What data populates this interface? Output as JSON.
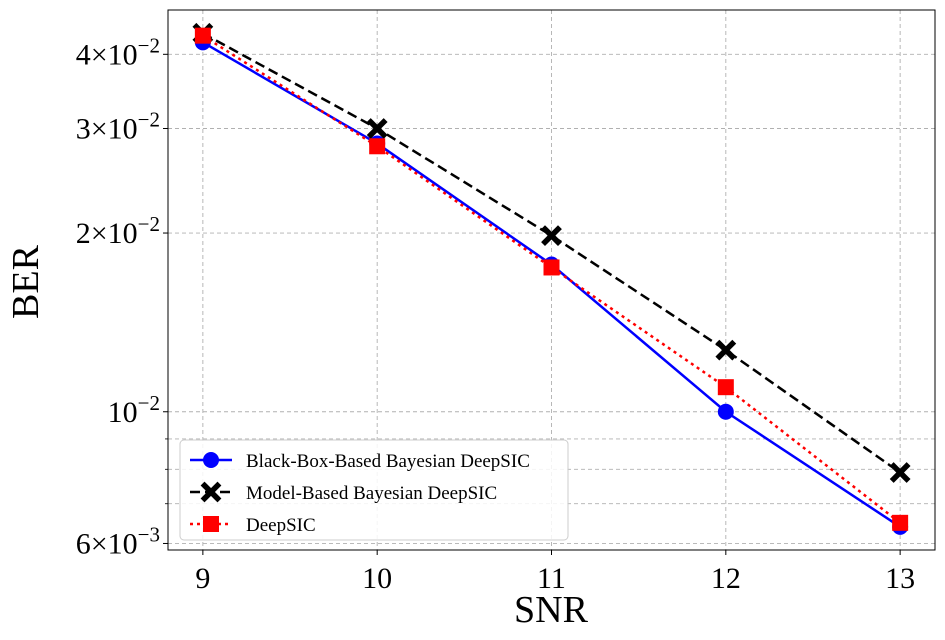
{
  "chart_data": {
    "type": "line",
    "xlabel": "SNR",
    "ylabel": "BER",
    "xlim": [
      8.8,
      13.2
    ],
    "ylim": [
      0.00585,
      0.0475
    ],
    "yscale": "log",
    "grid": true,
    "legend_position": "lower-left",
    "x_ticks": [
      9,
      10,
      11,
      12,
      13
    ],
    "x_tick_labels": [
      "9",
      "10",
      "11",
      "12",
      "13"
    ],
    "y_major_ticks": [
      {
        "value": 0.04,
        "mantissa": "4",
        "exponent": "−2"
      },
      {
        "value": 0.03,
        "mantissa": "3",
        "exponent": "−2"
      },
      {
        "value": 0.02,
        "mantissa": "2",
        "exponent": "−2"
      },
      {
        "value": 0.01,
        "mantissa": "",
        "exponent": "−2"
      },
      {
        "value": 0.006,
        "mantissa": "6",
        "exponent": "−3"
      }
    ],
    "y_minor_ticks": [
      0.007,
      0.008,
      0.009
    ],
    "x": [
      9,
      10,
      11,
      12,
      13
    ],
    "series": [
      {
        "name": "Black-Box-Based Bayesian DeepSIC",
        "values": [
          0.0419,
          0.0283,
          0.0177,
          0.01,
          0.0064
        ],
        "color": "#0000ff",
        "line_style": "solid",
        "marker": "circle"
      },
      {
        "name": "Model-Based Bayesian DeepSIC",
        "values": [
          0.0434,
          0.03,
          0.0198,
          0.0127,
          0.0079
        ],
        "color": "#000000",
        "line_style": "dashed",
        "marker": "x"
      },
      {
        "name": "DeepSIC",
        "values": [
          0.043,
          0.028,
          0.0175,
          0.011,
          0.0065
        ],
        "color": "#ff0000",
        "line_style": "dotted",
        "marker": "square"
      }
    ]
  }
}
